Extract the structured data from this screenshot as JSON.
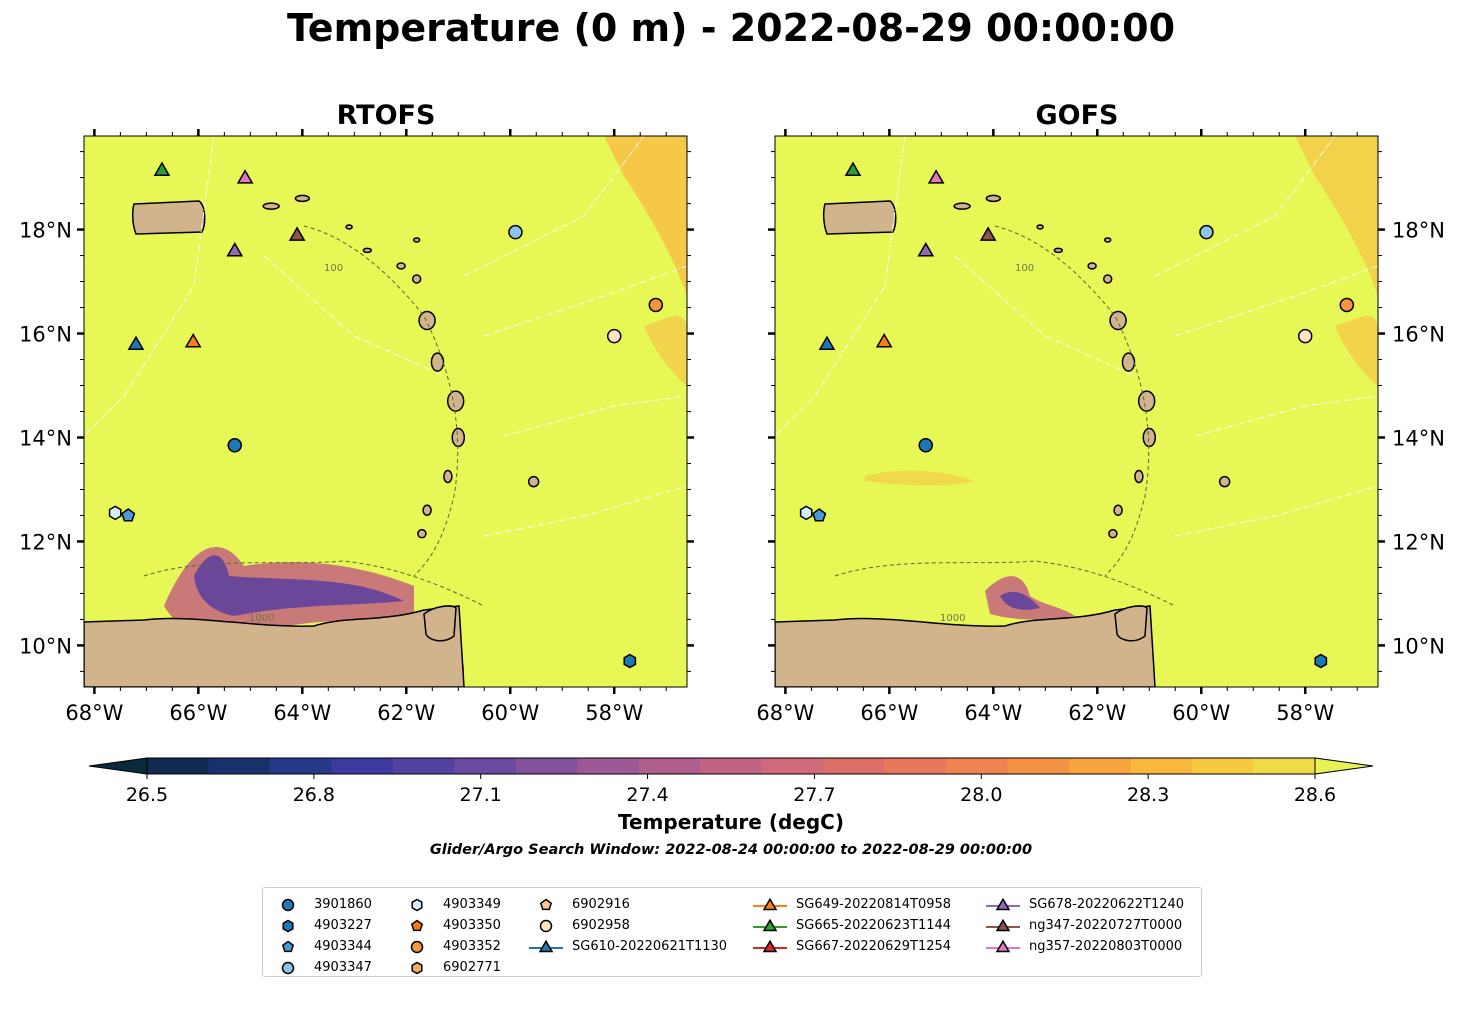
{
  "title": "Temperature (0 m) - 2022-08-29 00:00:00",
  "maps": [
    {
      "title": "RTOFS"
    },
    {
      "title": "GOFS"
    }
  ],
  "axes": {
    "lon_ticks": [
      "68°W",
      "66°W",
      "64°W",
      "62°W",
      "60°W",
      "58°W"
    ],
    "lat_ticks": [
      "18°N",
      "16°N",
      "14°N",
      "12°N",
      "10°N"
    ],
    "lon_range": [
      -68.2,
      -56.6
    ],
    "lat_range": [
      9.2,
      19.8
    ]
  },
  "isobath_labels": [
    "100",
    "1000"
  ],
  "colorbar": {
    "label": "Temperature (degC)",
    "ticks": [
      "26.5",
      "26.8",
      "27.1",
      "27.4",
      "27.7",
      "28.0",
      "28.3",
      "28.6"
    ],
    "range": [
      26.5,
      28.6
    ],
    "colors": [
      "#0a2a3c",
      "#102a50",
      "#17326d",
      "#273a8a",
      "#3c3aa0",
      "#5442a2",
      "#6b4aa0",
      "#84519c",
      "#9c5897",
      "#b05e8e",
      "#c26384",
      "#d06978",
      "#dc6f6a",
      "#e7785c",
      "#ef8450",
      "#f49246",
      "#f7a43f",
      "#f8b73d",
      "#f5c940",
      "#efdb46",
      "#e8f255"
    ]
  },
  "search_window": "Glider/Argo Search Window: 2022-08-24 00:00:00 to 2022-08-29 00:00:00",
  "colors": {
    "ocean": "#e6f756",
    "land": "#d1b48c",
    "warm": "#f6c548",
    "cool": "#5a3ea0",
    "mid": "#c4637f"
  },
  "legend": [
    {
      "label": "3901860",
      "marker": "circle",
      "color": "#1f77b4"
    },
    {
      "label": "4903227",
      "marker": "hexagon",
      "color": "#1f77b4"
    },
    {
      "label": "4903344",
      "marker": "pentagon",
      "color": "#4b9ad4"
    },
    {
      "label": "4903347",
      "marker": "circle",
      "color": "#8fc3ea"
    },
    {
      "label": "4903349",
      "marker": "hexagon",
      "color": "#d6ecfb"
    },
    {
      "label": "4903350",
      "marker": "pentagon",
      "color": "#f57d16"
    },
    {
      "label": "4903352",
      "marker": "circle",
      "color": "#f5953c"
    },
    {
      "label": "6902771",
      "marker": "hexagon",
      "color": "#f8ab62"
    },
    {
      "label": "6902916",
      "marker": "pentagon",
      "color": "#fbc896"
    },
    {
      "label": "6902958",
      "marker": "circle",
      "color": "#fde3c8"
    },
    {
      "label": "SG610-20220621T1130",
      "marker": "triangle",
      "color": "#1f77b4"
    },
    {
      "label": "SG649-20220814T0958",
      "marker": "triangle",
      "color": "#ff7f0e"
    },
    {
      "label": "SG665-20220623T1144",
      "marker": "triangle",
      "color": "#2ca02c"
    },
    {
      "label": "SG667-20220629T1254",
      "marker": "triangle",
      "color": "#d62728"
    },
    {
      "label": "SG678-20220622T1240",
      "marker": "triangle",
      "color": "#9467bd"
    },
    {
      "label": "ng347-20220727T0000",
      "marker": "triangle",
      "color": "#8c564b"
    },
    {
      "label": "ng357-20220803T0000",
      "marker": "triangle",
      "color": "#e377c2"
    }
  ],
  "observations": [
    {
      "id": "3901860",
      "lon": -65.3,
      "lat": 13.85
    },
    {
      "id": "4903227",
      "lon": -57.7,
      "lat": 9.7
    },
    {
      "id": "4903344",
      "lon": -67.35,
      "lat": 12.5
    },
    {
      "id": "4903347",
      "lon": -59.9,
      "lat": 17.95
    },
    {
      "id": "4903349",
      "lon": -67.6,
      "lat": 12.55
    },
    {
      "id": "4903352",
      "lon": -57.2,
      "lat": 16.55
    },
    {
      "id": "6902958",
      "lon": -58.0,
      "lat": 15.95
    },
    {
      "id": "SG610-20220621T1130",
      "lon": -67.2,
      "lat": 15.8
    },
    {
      "id": "SG649-20220814T0958",
      "lon": -66.1,
      "lat": 15.85
    },
    {
      "id": "SG665-20220623T1144",
      "lon": -66.7,
      "lat": 19.15
    },
    {
      "id": "SG678-20220622T1240",
      "lon": -65.3,
      "lat": 17.6
    },
    {
      "id": "ng347-20220727T0000",
      "lon": -64.1,
      "lat": 17.9
    },
    {
      "id": "ng357-20220803T0000",
      "lon": -65.1,
      "lat": 19.0
    }
  ]
}
